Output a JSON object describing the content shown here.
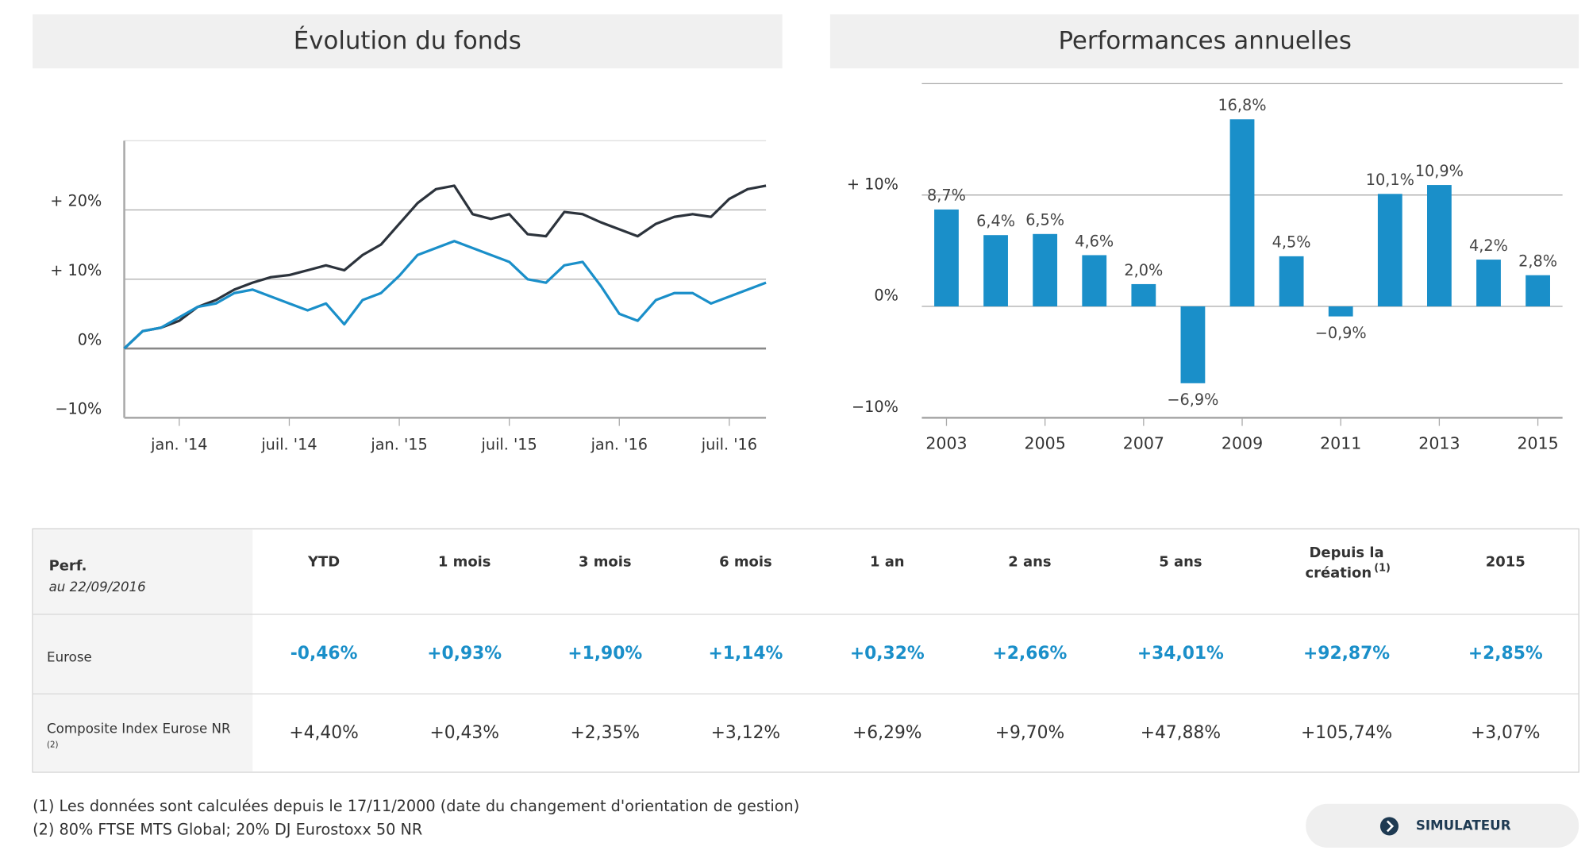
{
  "chart_data": [
    {
      "type": "line",
      "title": "Évolution du fonds",
      "x": [
        "2013-10",
        "2013-11",
        "2013-12",
        "2014-01",
        "2014-02",
        "2014-03",
        "2014-04",
        "2014-05",
        "2014-06",
        "2014-07",
        "2014-08",
        "2014-09",
        "2014-10",
        "2014-11",
        "2014-12",
        "2015-01",
        "2015-02",
        "2015-03",
        "2015-04",
        "2015-05",
        "2015-06",
        "2015-07",
        "2015-08",
        "2015-09",
        "2015-10",
        "2015-11",
        "2015-12",
        "2016-01",
        "2016-02",
        "2016-03",
        "2016-04",
        "2016-05",
        "2016-06",
        "2016-07",
        "2016-08",
        "2016-09"
      ],
      "series": [
        {
          "color": "#2c333c",
          "values": [
            0,
            2.5,
            3,
            4,
            6,
            7,
            8.5,
            9.5,
            10.3,
            10.6,
            11.3,
            12,
            11.3,
            13.5,
            15,
            18,
            21,
            23,
            23.5,
            19.4,
            18.7,
            19.4,
            16.5,
            16.2,
            19.7,
            19.4,
            18.2,
            17.2,
            16.2,
            18,
            19,
            19.4,
            19,
            21.6,
            23,
            23.5
          ]
        },
        {
          "color": "#1a8fc9",
          "values": [
            0,
            2.5,
            3,
            4.5,
            6,
            6.5,
            8,
            8.5,
            7.5,
            6.5,
            5.5,
            6.5,
            3.5,
            7,
            8,
            10.5,
            13.5,
            14.5,
            15.5,
            14.5,
            13.5,
            12.5,
            10,
            9.5,
            12,
            12.5,
            9,
            5,
            4,
            7,
            8,
            8,
            6.5,
            7.5,
            8.5,
            9.5
          ]
        }
      ],
      "xlim": [
        "2013-10",
        "2016-09"
      ],
      "xticks": [
        {
          "value": "2014-01",
          "label": "jan. '14"
        },
        {
          "value": "2014-07",
          "label": "juil. '14"
        },
        {
          "value": "2015-01",
          "label": "jan. '15"
        },
        {
          "value": "2015-07",
          "label": "juil. '15"
        },
        {
          "value": "2016-01",
          "label": "jan. '16"
        },
        {
          "value": "2016-07",
          "label": "juil. '16"
        }
      ],
      "ylim": [
        -10,
        30
      ],
      "yticks": [
        {
          "value": -10,
          "label": "−10%"
        },
        {
          "value": 0,
          "label": "0%"
        },
        {
          "value": 10,
          "label": "+ 10%"
        },
        {
          "value": 20,
          "label": "+ 20%"
        }
      ],
      "grid": true
    },
    {
      "type": "bar",
      "title": "Performances annuelles",
      "categories": [
        "2003",
        null,
        "2005",
        null,
        "2007",
        null,
        "2009",
        null,
        "2011",
        null,
        "2013",
        null,
        "2015"
      ],
      "values": [
        8.7,
        6.4,
        6.5,
        4.6,
        2.0,
        -6.9,
        16.8,
        4.5,
        -0.9,
        10.1,
        10.9,
        4.2,
        2.8
      ],
      "value_labels": [
        "8,7%",
        "6,4%",
        "6,5%",
        "4,6%",
        "2,0%",
        "−6,9%",
        "16,8%",
        "4,5%",
        "−0,9%",
        "10,1%",
        "10,9%",
        "4,2%",
        "2,8%"
      ],
      "color": "#1a8fc9",
      "ylim": [
        -10,
        20
      ],
      "yticks": [
        {
          "value": -10,
          "label": "−10%"
        },
        {
          "value": 0,
          "label": "0%"
        },
        {
          "value": 10,
          "label": "+ 10%"
        }
      ],
      "grid": true
    }
  ],
  "table": {
    "header_label": "Perf.",
    "header_date": "au 22/09/2016",
    "columns": [
      "YTD",
      "1 mois",
      "3 mois",
      "6 mois",
      "1 an",
      "2 ans",
      "5 ans",
      {
        "lines": [
          "Depuis la",
          "création"
        ],
        "note": "(1)"
      },
      "2015"
    ],
    "rows": [
      {
        "label": "Eurose",
        "values": [
          "-0,46%",
          "+0,93%",
          "+1,90%",
          "+1,14%",
          "+0,32%",
          "+2,66%",
          "+34,01%",
          "+92,87%",
          "+2,85%"
        ]
      },
      {
        "label": "Composite Index Eurose NR",
        "note": "(2)",
        "values": [
          "+4,40%",
          "+0,43%",
          "+2,35%",
          "+3,12%",
          "+6,29%",
          "+9,70%",
          "+47,88%",
          "+105,74%",
          "+3,07%"
        ]
      }
    ]
  },
  "footnotes": [
    "(1) Les données sont calculées depuis le 17/11/2000 (date du changement d'orientation de gestion)",
    "(2) 80% FTSE MTS Global; 20% DJ Eurostoxx 50 NR"
  ],
  "button": "SIMULATEUR"
}
